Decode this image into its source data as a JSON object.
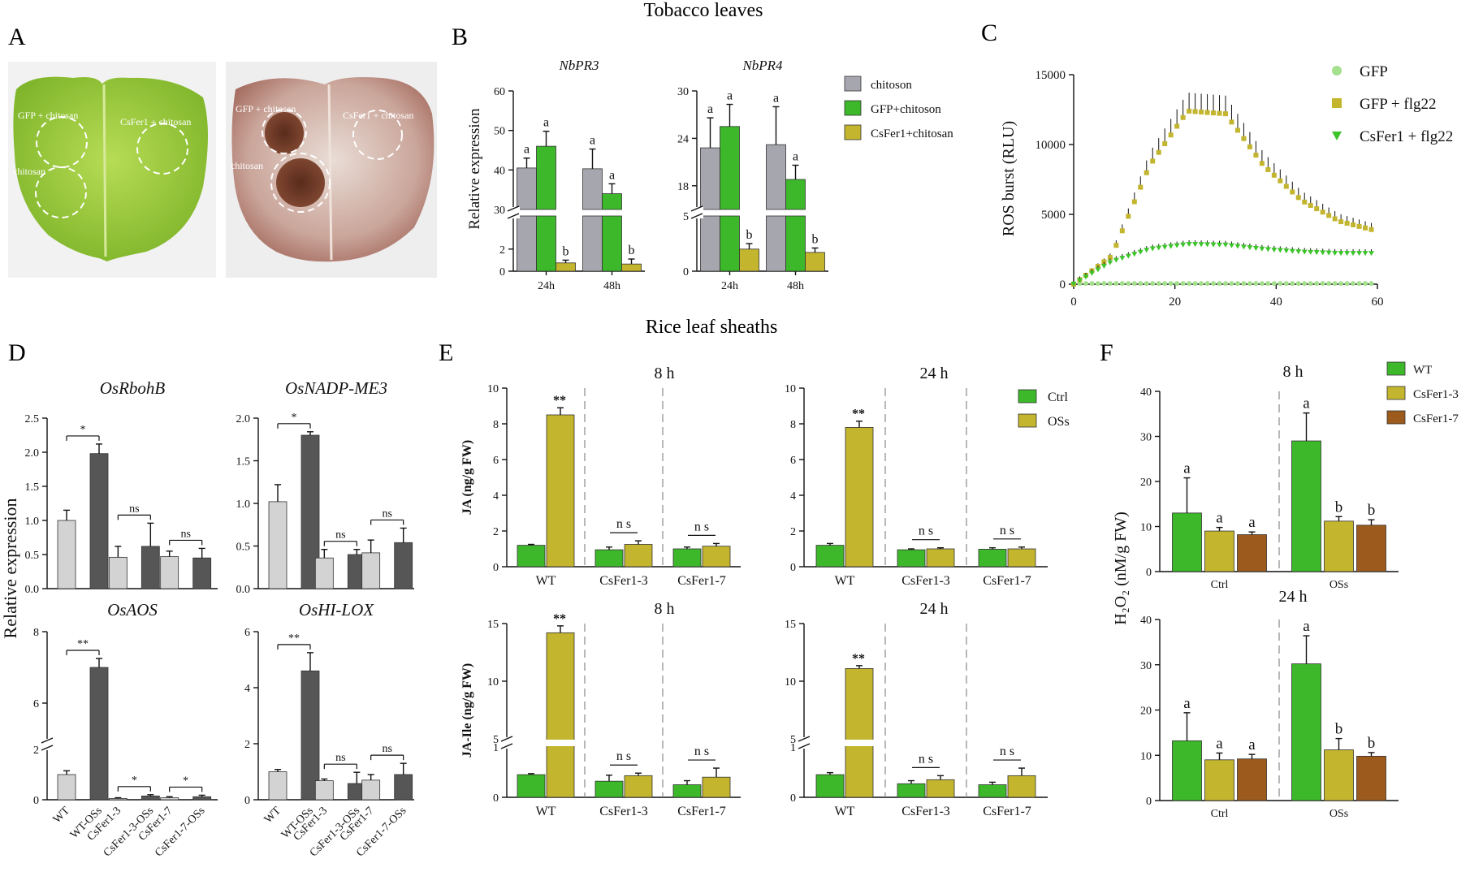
{
  "figure": {
    "header_top": "Tobacco leaves",
    "header_mid": "Rice leaf sheaths",
    "panel_letters": [
      "A",
      "B",
      "C",
      "D",
      "E",
      "F"
    ]
  },
  "panelA": {
    "left_labels": [
      "GFP + chitosan",
      "CsFer1 + chitosan",
      "chitosan"
    ],
    "right_labels": [
      "GFP + chitosan",
      "CsFer1 + chitosan",
      "chitosan"
    ]
  },
  "chart_data": [
    {
      "id": "B",
      "type": "bar",
      "ylabel": "Relative expression",
      "legend": [
        "chitoson",
        "GFP+chitoson",
        "CsFer1+chitosan"
      ],
      "colors": [
        "#a6a6ae",
        "#3cb82a",
        "#c3b52e"
      ],
      "subplots": [
        {
          "title": "NbPR3",
          "categories": [
            "24h",
            "48h"
          ],
          "series": [
            {
              "name": "chitoson",
              "values": [
                40.5,
                40.3
              ],
              "errors": [
                2.5,
                5.0
              ],
              "letters": [
                "a",
                "a"
              ]
            },
            {
              "name": "GFP+chitoson",
              "values": [
                46.0,
                34.0
              ],
              "errors": [
                3.8,
                2.5
              ],
              "letters": [
                "a",
                "a"
              ]
            },
            {
              "name": "CsFer1+chitosan",
              "values": [
                0.75,
                0.65
              ],
              "errors": [
                0.25,
                0.45
              ],
              "letters": [
                "b",
                "b"
              ]
            }
          ],
          "axis_low": {
            "ylim": [
              0,
              5
            ],
            "ticks": [
              "0",
              "2"
            ]
          },
          "axis_high": {
            "ylim": [
              30,
              60
            ],
            "ticks": [
              "30",
              "40",
              "50",
              "60"
            ]
          }
        },
        {
          "title": "NbPR4",
          "categories": [
            "24h",
            "48h"
          ],
          "series": [
            {
              "name": "chitoson",
              "values": [
                22.8,
                23.2
              ],
              "errors": [
                3.8,
                4.8
              ],
              "letters": [
                "a",
                "a"
              ]
            },
            {
              "name": "GFP+chitoson",
              "values": [
                25.5,
                18.8
              ],
              "errors": [
                2.8,
                1.8
              ],
              "letters": [
                "a",
                "a"
              ]
            },
            {
              "name": "CsFer1+chitosan",
              "values": [
                2.0,
                1.7
              ],
              "errors": [
                0.5,
                0.4
              ],
              "letters": [
                "b",
                "b"
              ]
            }
          ],
          "axis_low": {
            "ylim": [
              0,
              5
            ],
            "ticks": [
              "0",
              "5"
            ]
          },
          "axis_high": {
            "ylim": [
              15,
              30
            ],
            "ticks": [
              "18",
              "24",
              "30"
            ]
          }
        }
      ]
    },
    {
      "id": "C",
      "type": "scatter",
      "ylabel": "ROS burst (RLU)",
      "xlim": [
        0,
        60
      ],
      "ylim": [
        0,
        15000
      ],
      "xticks": [
        "0",
        "20",
        "40",
        "60"
      ],
      "yticks": [
        "0",
        "5000",
        "10000",
        "15000"
      ],
      "legend": [
        "GFP",
        "GFP + flg22",
        "CsFer1 + flg22"
      ],
      "colors": [
        "#a4e08e",
        "#c3b52e",
        "#3cc42a"
      ],
      "series": [
        {
          "name": "GFP",
          "values": [
            0,
            20,
            40,
            60
          ]
        },
        {
          "name": "GFP + flg22",
          "values": [
            0,
            2000,
            8500,
            12400,
            12200,
            8500,
            6000,
            4500,
            3800
          ]
        },
        {
          "name": "CsFer1 + flg22",
          "values": [
            0,
            1600,
            2500,
            2850,
            2800,
            2500,
            2300,
            2200,
            2200
          ]
        }
      ]
    },
    {
      "id": "D",
      "type": "bar",
      "ylabel": "Relative expression",
      "colors": [
        "#d3d3d3",
        "#565656"
      ],
      "categories": [
        "WT",
        "WT-OSs",
        "CsFer1-3",
        "CsFer1-3-OSs",
        "CsFer1-7",
        "CsFer1-7-OSs"
      ],
      "subplots": [
        {
          "title": "OsRbohB",
          "values": [
            1.0,
            1.98,
            0.46,
            0.62,
            0.47,
            0.45
          ],
          "errors": [
            0.15,
            0.14,
            0.16,
            0.34,
            0.08,
            0.14
          ],
          "yticks": [
            "0.0",
            "0.5",
            "1.0",
            "1.5",
            "2.0",
            "2.5"
          ],
          "sig": [
            "*",
            "ns",
            "ns"
          ]
        },
        {
          "title": "OsNADP-ME3",
          "values": [
            1.02,
            1.8,
            0.36,
            0.4,
            0.42,
            0.54
          ],
          "errors": [
            0.2,
            0.04,
            0.1,
            0.06,
            0.15,
            0.17
          ],
          "yticks": [
            "0.0",
            "0.5",
            "1.0",
            "1.5",
            "2.0"
          ],
          "sig": [
            "*",
            "ns",
            "ns"
          ]
        },
        {
          "title": "OsAOS",
          "values": [
            1.0,
            7.0,
            0.05,
            0.15,
            0.08,
            0.12
          ],
          "errors": [
            0.15,
            0.25,
            0.03,
            0.05,
            0.04,
            0.06
          ],
          "yticks": [
            "0",
            "2",
            "6",
            "8"
          ],
          "sig": [
            "**",
            "*",
            "*"
          ]
        },
        {
          "title": "OsHI-LOX",
          "values": [
            1.0,
            4.6,
            0.68,
            0.58,
            0.7,
            0.9
          ],
          "errors": [
            0.08,
            0.65,
            0.06,
            0.4,
            0.2,
            0.4
          ],
          "yticks": [
            "0",
            "2",
            "4",
            "6"
          ],
          "sig": [
            "**",
            "ns",
            "ns"
          ]
        }
      ]
    },
    {
      "id": "E",
      "type": "bar",
      "legend": [
        "Ctrl",
        "OSs"
      ],
      "colors": [
        "#3cb82a",
        "#c3b52e"
      ],
      "categories": [
        "WT",
        "CsFer1-3",
        "CsFer1-7"
      ],
      "subplots": [
        {
          "title": "8 h",
          "ylabel": "JA (ng/g FW)",
          "ctrl": [
            1.2,
            0.95,
            1.0
          ],
          "oss": [
            8.5,
            1.25,
            1.15
          ],
          "ctrl_err": [
            0.05,
            0.15,
            0.1
          ],
          "oss_err": [
            0.4,
            0.2,
            0.15
          ],
          "yticks": [
            "0",
            "2",
            "4",
            "6",
            "8",
            "10"
          ],
          "sig": [
            "**",
            "n s",
            "n s"
          ]
        },
        {
          "title": "24 h",
          "ylabel": "",
          "ctrl": [
            1.2,
            0.95,
            0.98
          ],
          "oss": [
            7.8,
            1.0,
            1.0
          ],
          "ctrl_err": [
            0.1,
            0.05,
            0.08
          ],
          "oss_err": [
            0.35,
            0.06,
            0.1
          ],
          "yticks": [
            "0",
            "2",
            "4",
            "6",
            "8",
            "10"
          ],
          "sig": [
            "**",
            "n s",
            "n s"
          ]
        },
        {
          "title": "8 h",
          "ylabel": "JA-Ile (ng/g FW)",
          "ctrl": [
            0.45,
            0.32,
            0.25
          ],
          "oss": [
            14.2,
            0.43,
            0.4
          ],
          "ctrl_err": [
            0.02,
            0.12,
            0.08
          ],
          "oss_err": [
            0.6,
            0.05,
            0.18
          ],
          "yticks": [
            "0",
            "1",
            "5",
            "10",
            "15"
          ],
          "sig": [
            "**",
            "n s",
            "n s"
          ]
        },
        {
          "title": "24 h",
          "ylabel": "",
          "ctrl": [
            0.45,
            0.27,
            0.25
          ],
          "oss": [
            11.1,
            0.35,
            0.43
          ],
          "ctrl_err": [
            0.04,
            0.06,
            0.05
          ],
          "oss_err": [
            0.25,
            0.08,
            0.15
          ],
          "yticks": [
            "0",
            "1",
            "5",
            "10",
            "15"
          ],
          "sig": [
            "**",
            "n s",
            "n s"
          ]
        }
      ]
    },
    {
      "id": "F",
      "type": "bar",
      "ylabel": "H₂O₂ (nM/g FW)",
      "legend": [
        "WT",
        "CsFer1-3",
        "CsFer1-7"
      ],
      "colors": [
        "#3cb82a",
        "#c3b52e",
        "#9c5a1d"
      ],
      "categories": [
        "Ctrl",
        "OSs"
      ],
      "subplots": [
        {
          "title": "8 h",
          "series": [
            [
              13.0,
              29.0
            ],
            [
              9.0,
              11.2
            ],
            [
              8.2,
              10.3
            ]
          ],
          "errors": [
            [
              7.8,
              6.2
            ],
            [
              0.8,
              1.0
            ],
            [
              0.6,
              1.2
            ]
          ],
          "letters": [
            [
              "a",
              "a"
            ],
            [
              "a",
              "b"
            ],
            [
              "a",
              "b"
            ]
          ],
          "yticks": [
            "0",
            "10",
            "20",
            "30",
            "40"
          ]
        },
        {
          "title": "24 h",
          "series": [
            [
              13.2,
              30.2
            ],
            [
              9.0,
              11.2
            ],
            [
              9.2,
              9.8
            ]
          ],
          "errors": [
            [
              6.2,
              6.2
            ],
            [
              1.5,
              2.5
            ],
            [
              1.0,
              0.8
            ]
          ],
          "letters": [
            [
              "a",
              "a"
            ],
            [
              "a",
              "b"
            ],
            [
              "a",
              "b"
            ]
          ],
          "yticks": [
            "0",
            "10",
            "20",
            "30",
            "40"
          ]
        }
      ]
    }
  ]
}
